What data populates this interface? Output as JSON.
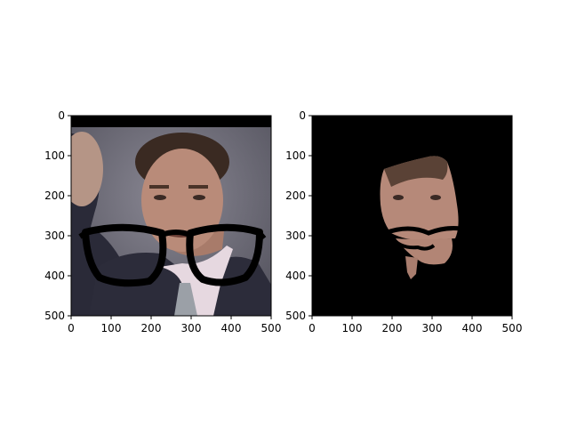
{
  "figure": {
    "background": "#ffffff"
  },
  "chart_data": [
    {
      "type": "image",
      "content": "photo of a man in a dark suit with a black eyeglasses graphic overlaid across the face; black band across the top rows",
      "xlim": [
        0,
        500
      ],
      "ylim": [
        500,
        0
      ],
      "xticks": [
        0,
        100,
        200,
        300,
        400,
        500
      ],
      "yticks": [
        0,
        100,
        200,
        300,
        400,
        500
      ],
      "xtick_labels": [
        "0",
        "100",
        "200",
        "300",
        "400",
        "500"
      ],
      "ytick_labels": [
        "0",
        "100",
        "200",
        "300",
        "400",
        "500"
      ],
      "colors": {
        "background": "#6e6c78",
        "suit": "#2e2e3c",
        "skin": "#b78a78",
        "hair": "#3a2a22",
        "shirt": "#e7d9e2",
        "tie": "#9aa0a8",
        "glasses": "#000000"
      }
    },
    {
      "type": "image",
      "content": "segmentation mask output: black background with only the face region (and glasses outline) retained",
      "xlim": [
        0,
        500
      ],
      "ylim": [
        500,
        0
      ],
      "xticks": [
        0,
        100,
        200,
        300,
        400,
        500
      ],
      "yticks": [
        0,
        100,
        200,
        300,
        400,
        500
      ],
      "xtick_labels": [
        "0",
        "100",
        "200",
        "300",
        "400",
        "500"
      ],
      "ytick_labels": [
        "0",
        "100",
        "200",
        "300",
        "400",
        "500"
      ],
      "colors": {
        "background": "#000000",
        "skin": "#b78a78",
        "hair": "#3a2a22"
      }
    }
  ]
}
